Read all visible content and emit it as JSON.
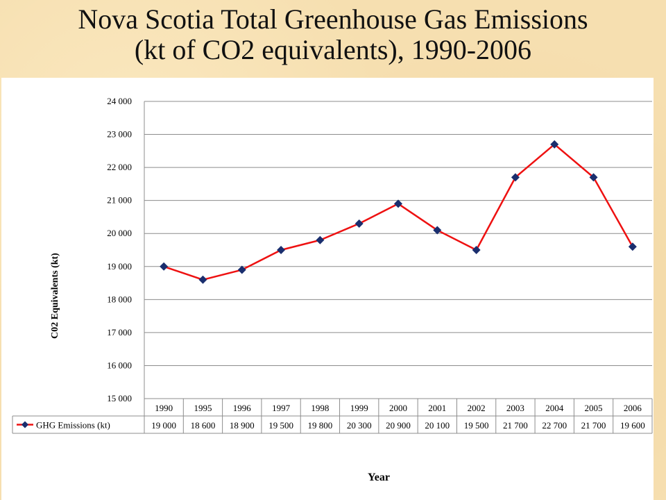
{
  "slide": {
    "title_line1": "Nova Scotia Total Greenhouse Gas Emissions",
    "title_line2": "(kt of CO2 equivalents), 1990-2006"
  },
  "chart_data": {
    "type": "line",
    "categories": [
      "1990",
      "1995",
      "1996",
      "1997",
      "1998",
      "1999",
      "2000",
      "2001",
      "2002",
      "2003",
      "2004",
      "2005",
      "2006"
    ],
    "series": [
      {
        "name": "GHG Emissions (kt)",
        "values": [
          19000,
          18600,
          18900,
          19500,
          19800,
          20300,
          20900,
          20100,
          19500,
          21700,
          22700,
          21700,
          19600
        ],
        "color": "#ee1111",
        "marker_color": "#1a2e6e",
        "marker": "diamond"
      }
    ],
    "value_labels": [
      "19 000",
      "18 600",
      "18 900",
      "19 500",
      "19 800",
      "20 300",
      "20 900",
      "20 100",
      "19 500",
      "21 700",
      "22 700",
      "21 700",
      "19 600"
    ],
    "y_ticks": [
      15000,
      16000,
      17000,
      18000,
      19000,
      20000,
      21000,
      22000,
      23000,
      24000
    ],
    "y_tick_labels": [
      "15 000",
      "16 000",
      "17 000",
      "18 000",
      "19 000",
      "20 000",
      "21 000",
      "22 000",
      "23 000",
      "24 000"
    ],
    "ylim": [
      15000,
      24000
    ],
    "ylabel": "C02 Equivalents (kt)",
    "xlabel": "Year",
    "grid": true,
    "legend": "data-table"
  }
}
